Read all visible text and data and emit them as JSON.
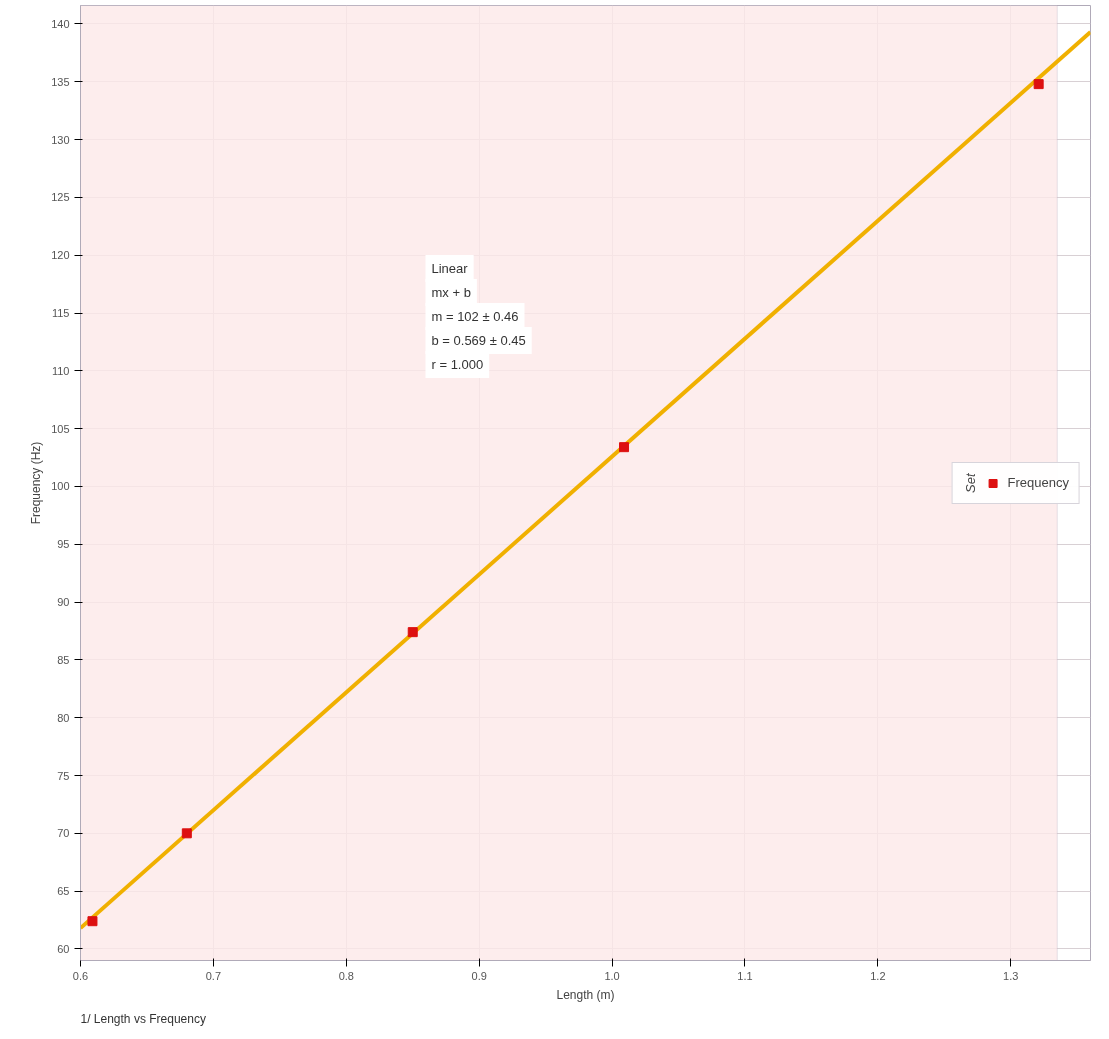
{
  "chart_data": {
    "type": "scatter",
    "title": "1/ Length vs Frequency",
    "xlabel": "Length (m)",
    "ylabel": "Frequency (Hz)",
    "legend_title": "Set",
    "series": [
      {
        "type": "line",
        "color": "#f0b000",
        "x": [
          0.6,
          1.36
        ],
        "values": [
          61.8,
          139.3
        ]
      },
      {
        "name": "Frequency",
        "color": "#dd1010",
        "marker": "square",
        "x": [
          0.609,
          0.68,
          0.85,
          1.009,
          1.321
        ],
        "values": [
          62.4,
          70.0,
          87.4,
          103.4,
          134.8
        ]
      }
    ],
    "annotations": [
      "Linear",
      "mx + b",
      "m = 102 ± 0.46",
      "b = 0.569 ± 0.45",
      "r = 1.000"
    ],
    "bands": [
      {
        "axis": "x",
        "from": 0.6,
        "to": 1.335,
        "color": "#fde8e8"
      }
    ],
    "xlim": [
      0.6,
      1.36
    ],
    "ylim": [
      59,
      141.6
    ],
    "xticks": [
      0.6,
      0.7,
      0.8,
      0.9,
      {
        "value": 1,
        "label": "1.0"
      },
      1.1,
      1.2,
      1.3
    ],
    "yticks": [
      60,
      65,
      70,
      75,
      80,
      85,
      90,
      95,
      100,
      105,
      110,
      115,
      120,
      125,
      130,
      135,
      140
    ],
    "grid": true,
    "legend": "right"
  }
}
